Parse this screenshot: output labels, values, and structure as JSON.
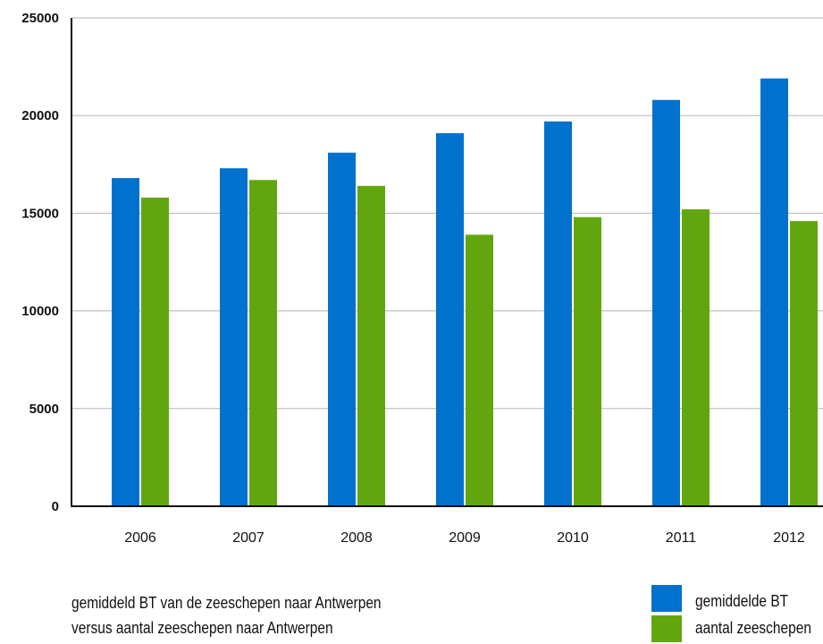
{
  "caption": {
    "line1": "gemiddeld BT van de zeeschepen naar Antwerpen",
    "line2": "versus aantal zeeschepen naar Antwerpen"
  },
  "colors": {
    "series_blue": "#0071CD",
    "series_green": "#62A60F",
    "grid": "#b5b5b5",
    "axis": "#111111"
  },
  "chart_data": {
    "type": "bar",
    "title": "",
    "xlabel": "",
    "ylabel": "",
    "ylim": [
      0,
      25000
    ],
    "yticks": [
      0,
      5000,
      10000,
      15000,
      20000,
      25000
    ],
    "grid": true,
    "legend_position": "bottom-right",
    "categories": [
      "2006",
      "2007",
      "2008",
      "2009",
      "2010",
      "2011",
      "2012"
    ],
    "series": [
      {
        "name": "gemiddelde BT",
        "color": "#0071CD",
        "values": [
          16800,
          17300,
          18100,
          19100,
          19700,
          20800,
          21900
        ]
      },
      {
        "name": "aantal zeeschepen",
        "color": "#62A60F",
        "values": [
          15800,
          16700,
          16400,
          13900,
          14800,
          15200,
          14600
        ]
      }
    ]
  }
}
